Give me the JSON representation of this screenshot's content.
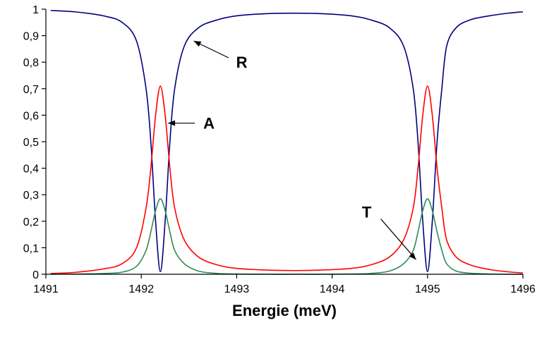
{
  "chart_data": {
    "type": "line",
    "title": "",
    "xlabel": "Energie (meV)",
    "ylabel": "",
    "xlim": [
      1491,
      1496
    ],
    "ylim": [
      0,
      1
    ],
    "grid": false,
    "legend": "none",
    "x_ticks": [
      "1491",
      "1492",
      "1493",
      "1494",
      "1495",
      "1496"
    ],
    "y_ticks": [
      "0",
      "0,1",
      "0,2",
      "0,3",
      "0,4",
      "0,5",
      "0,6",
      "0,7",
      "0,8",
      "0,9",
      "1"
    ],
    "series": [
      {
        "name": "R",
        "color": "#000080",
        "x": [
          1491.05,
          1491.3,
          1491.6,
          1491.8,
          1491.95,
          1492.05,
          1492.1,
          1492.15,
          1492.2,
          1492.25,
          1492.3,
          1492.35,
          1492.45,
          1492.6,
          1492.8,
          1493.0,
          1493.3,
          1493.6,
          1493.9,
          1494.2,
          1494.4,
          1494.6,
          1494.75,
          1494.85,
          1494.9,
          1494.95,
          1495.0,
          1495.05,
          1495.1,
          1495.15,
          1495.2,
          1495.3,
          1495.45,
          1495.65,
          1495.85,
          1496.0
        ],
        "y": [
          0.995,
          0.99,
          0.975,
          0.95,
          0.88,
          0.7,
          0.5,
          0.2,
          0.01,
          0.2,
          0.5,
          0.7,
          0.86,
          0.93,
          0.96,
          0.975,
          0.983,
          0.985,
          0.983,
          0.975,
          0.96,
          0.93,
          0.86,
          0.7,
          0.5,
          0.2,
          0.01,
          0.2,
          0.5,
          0.7,
          0.86,
          0.93,
          0.96,
          0.975,
          0.985,
          0.99
        ]
      },
      {
        "name": "A",
        "color": "#ff0000",
        "x": [
          1491.05,
          1491.3,
          1491.6,
          1491.8,
          1491.95,
          1492.05,
          1492.1,
          1492.15,
          1492.2,
          1492.25,
          1492.3,
          1492.35,
          1492.45,
          1492.6,
          1492.8,
          1493.0,
          1493.3,
          1493.6,
          1493.9,
          1494.2,
          1494.4,
          1494.6,
          1494.75,
          1494.85,
          1494.9,
          1494.95,
          1495.0,
          1495.05,
          1495.1,
          1495.15,
          1495.2,
          1495.3,
          1495.45,
          1495.65,
          1495.85,
          1496.0
        ],
        "y": [
          0.003,
          0.007,
          0.02,
          0.04,
          0.1,
          0.25,
          0.4,
          0.6,
          0.71,
          0.6,
          0.4,
          0.25,
          0.13,
          0.065,
          0.035,
          0.022,
          0.016,
          0.014,
          0.016,
          0.022,
          0.035,
          0.065,
          0.13,
          0.25,
          0.4,
          0.6,
          0.71,
          0.6,
          0.4,
          0.25,
          0.13,
          0.065,
          0.035,
          0.018,
          0.009,
          0.005
        ]
      },
      {
        "name": "T",
        "color": "#2e8b57",
        "x": [
          1491.05,
          1491.3,
          1491.6,
          1491.8,
          1491.95,
          1492.05,
          1492.1,
          1492.15,
          1492.2,
          1492.25,
          1492.3,
          1492.35,
          1492.45,
          1492.6,
          1492.8,
          1493.0,
          1493.3,
          1493.6,
          1493.9,
          1494.2,
          1494.4,
          1494.6,
          1494.75,
          1494.85,
          1494.9,
          1494.95,
          1495.0,
          1495.05,
          1495.1,
          1495.15,
          1495.2,
          1495.3,
          1495.45,
          1495.65,
          1495.85,
          1496.0
        ],
        "y": [
          0.0,
          0.001,
          0.003,
          0.008,
          0.03,
          0.09,
          0.16,
          0.24,
          0.285,
          0.24,
          0.16,
          0.09,
          0.04,
          0.012,
          0.003,
          0.001,
          0.0,
          0.0,
          0.0,
          0.001,
          0.003,
          0.012,
          0.04,
          0.09,
          0.16,
          0.24,
          0.285,
          0.24,
          0.16,
          0.09,
          0.04,
          0.012,
          0.004,
          0.001,
          0.0,
          0.0
        ]
      }
    ],
    "annotations": [
      {
        "text": "R",
        "x": 1492.55,
        "y": 0.88
      },
      {
        "text": "A",
        "x": 1492.28,
        "y": 0.57
      },
      {
        "text": "T",
        "x": 1494.88,
        "y": 0.055
      }
    ]
  }
}
